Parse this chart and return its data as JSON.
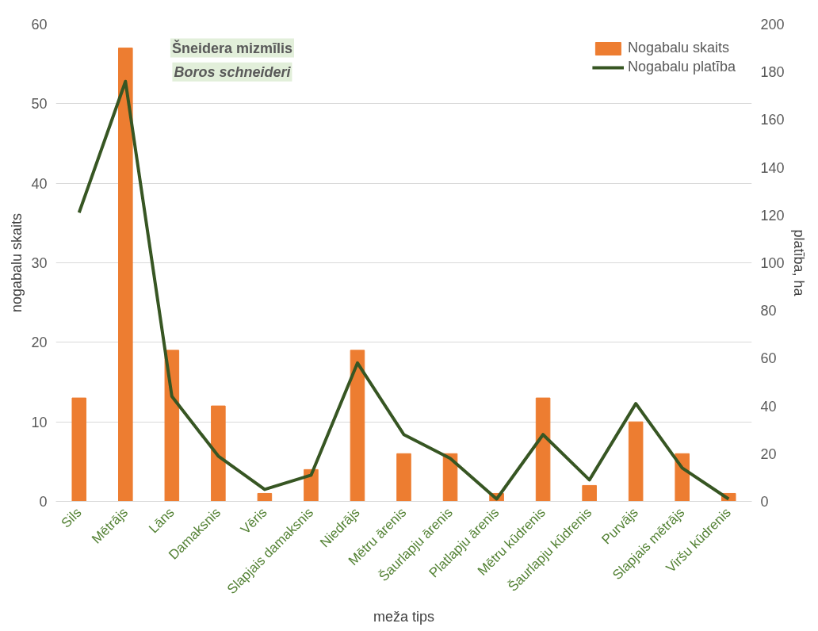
{
  "chart_data": {
    "type": "bar",
    "xlabel": "meža tips",
    "ylabel": "nogabalu skaits",
    "y2label": "platība, ha",
    "annotations": [
      "Šneidera mizmīlis",
      "Boros schneideri"
    ],
    "categories": [
      "Sils",
      "Mētrājs",
      "Lāns",
      "Damaksnis",
      "Vēris",
      "Slapjais damaksnis",
      "Niedrājs",
      "Mētru ārenis",
      "Šaurlapju ārenis",
      "Platlapju ārenis",
      "Mētru kūdrenis",
      "Šaurlapju kūdrenis",
      "Purvājs",
      "Slapjais mētrājs",
      "Viršu kūdrenis"
    ],
    "series": [
      {
        "name": "Nogabalu skaits",
        "color": "#ed7d31",
        "values": [
          13,
          57,
          19,
          12,
          1,
          4,
          19,
          6,
          6,
          1,
          13,
          2,
          10,
          6,
          1
        ]
      },
      {
        "name": "Nogabalu platība",
        "type": "line",
        "axis": "y2",
        "color": "#375623",
        "values": [
          121,
          176,
          44,
          19,
          5,
          11,
          58,
          28,
          18,
          1,
          28,
          9,
          41,
          14,
          1
        ]
      }
    ],
    "ylim": [
      0,
      60
    ],
    "yticks": [
      0,
      10,
      20,
      30,
      40,
      50,
      60
    ],
    "y2lim": [
      0,
      200
    ],
    "y2ticks": [
      0,
      20,
      40,
      60,
      80,
      100,
      120,
      140,
      160,
      180,
      200
    ],
    "grid": "y",
    "legend": "top right",
    "line_style": "solid",
    "marker": "none"
  }
}
